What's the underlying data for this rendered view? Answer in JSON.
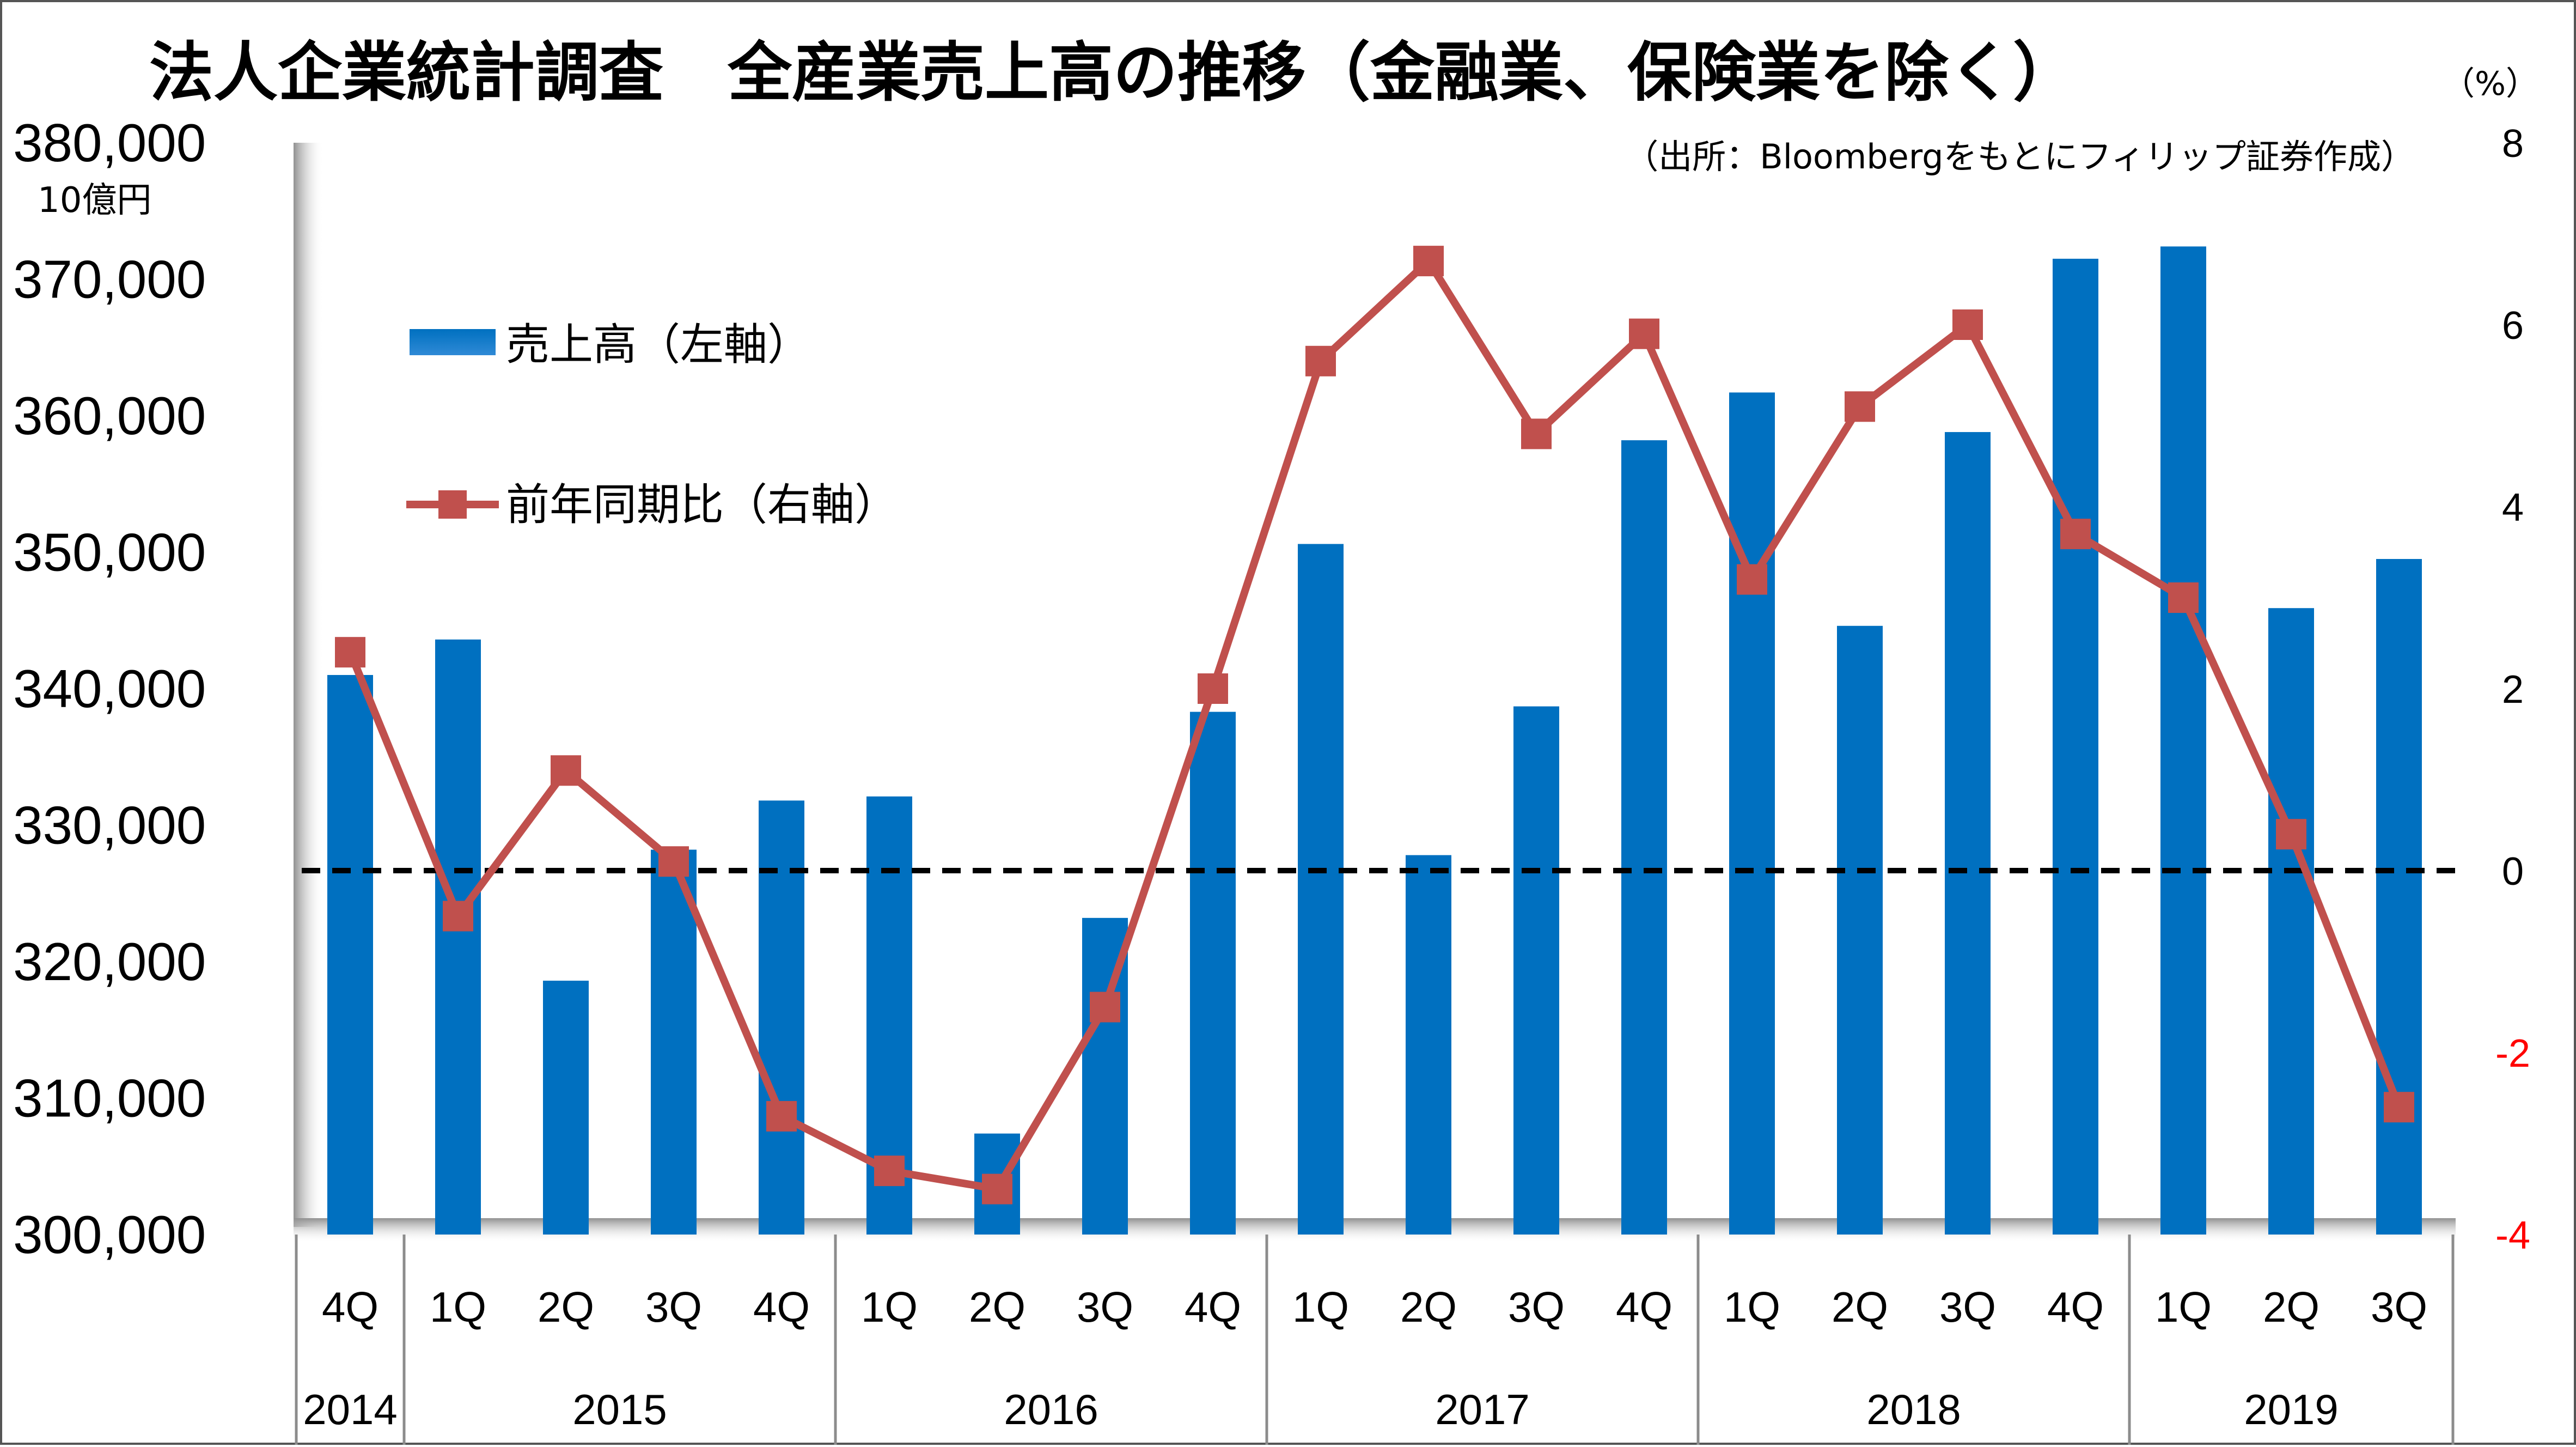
{
  "chart_data": {
    "type": "bar",
    "title": "法人企業統計調査　全産業売上高の推移（金融業、保険業を除く）",
    "source": "（出所：Bloombergをもとにフィリップ証券作成）",
    "ylabel": "10億円",
    "y2label": "（%）",
    "ylim": [
      300000,
      380000
    ],
    "y2lim": [
      -4,
      8
    ],
    "yticks": [
      "300,000",
      "310,000",
      "320,000",
      "330,000",
      "340,000",
      "350,000",
      "360,000",
      "370,000",
      "380,000"
    ],
    "y2ticks": [
      {
        "label": "-4",
        "value": -4
      },
      {
        "label": "-2",
        "value": -2
      },
      {
        "label": "0",
        "value": 0
      },
      {
        "label": "2",
        "value": 2
      },
      {
        "label": "4",
        "value": 4
      },
      {
        "label": "6",
        "value": 6
      },
      {
        "label": "8",
        "value": 8
      }
    ],
    "categories": [
      "4Q",
      "1Q",
      "2Q",
      "3Q",
      "4Q",
      "1Q",
      "2Q",
      "3Q",
      "4Q",
      "1Q",
      "2Q",
      "3Q",
      "4Q",
      "1Q",
      "2Q",
      "3Q",
      "4Q",
      "1Q",
      "2Q",
      "3Q"
    ],
    "years": [
      {
        "label": "2014",
        "count": 1
      },
      {
        "label": "2015",
        "count": 4
      },
      {
        "label": "2016",
        "count": 4
      },
      {
        "label": "2017",
        "count": 4
      },
      {
        "label": "2018",
        "count": 4
      },
      {
        "label": "2019",
        "count": 3
      }
    ],
    "series": [
      {
        "name": "売上高（左軸）",
        "axis": "left",
        "kind": "bar",
        "color": "#0070c0",
        "values": [
          341000,
          343600,
          318600,
          328200,
          331800,
          332100,
          307400,
          323200,
          338300,
          350600,
          327800,
          338700,
          358200,
          361700,
          344600,
          358800,
          371500,
          372400,
          345900,
          349500
        ]
      },
      {
        "name": "前年同期比（右軸）",
        "axis": "right",
        "kind": "line",
        "color": "#c0504d",
        "values": [
          2.4,
          -0.5,
          1.1,
          0.1,
          -2.7,
          -3.3,
          -3.5,
          -1.5,
          2.0,
          5.6,
          6.7,
          4.8,
          5.9,
          3.2,
          5.1,
          6.0,
          3.7,
          3.0,
          0.4,
          -2.6
        ]
      }
    ],
    "legend": "top-left"
  },
  "colors": {
    "bar": "#0070c0",
    "line": "#c0504d",
    "negative_tick": "#ff0000",
    "zero_line": "#000000"
  }
}
